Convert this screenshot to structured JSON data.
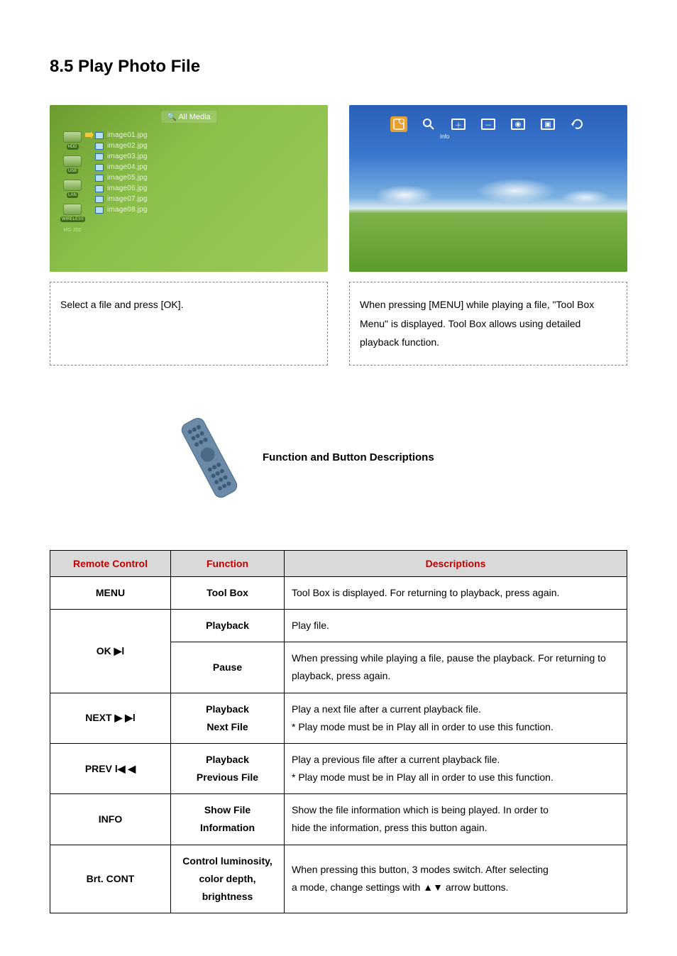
{
  "heading": "8.5 Play Photo File",
  "filebrowser": {
    "search_label": "All Media",
    "side_devices": [
      "HDD",
      "USB",
      "LAN",
      "WIRELESS"
    ],
    "files": [
      "image01.jpg",
      "image02.jpg",
      "image03.jpg",
      "image04.jpg",
      "image05.jpg",
      "image06.jpg",
      "image07.jpg",
      "image08.jpg"
    ],
    "logo_line": "MG 350"
  },
  "photoviewer": {
    "info_label": "Info"
  },
  "captions": {
    "left": "Select a file and press [OK].",
    "right": "When pressing [MENU] while playing a file, \"Tool Box Menu\" is displayed. Tool Box allows using detailed playback function."
  },
  "function_heading": "Function and Button Descriptions",
  "table": {
    "headers": [
      "Remote Control",
      "Function",
      "Descriptions"
    ],
    "rows": [
      {
        "rc": "MENU",
        "fn": "Tool Box",
        "desc": "Tool Box is displayed. For returning to playback, press again."
      },
      {
        "rc": "OK ▶l",
        "rowspan": 2,
        "fn": "Playback",
        "desc": "Play file."
      },
      {
        "fn": "Pause",
        "desc": "When pressing while playing a file, pause the playback. For returning to playback, press again.",
        "justify": true
      },
      {
        "rc": "NEXT ▶ ▶l",
        "fn": "Playback\nNext File",
        "desc": "Play a next file after a current playback file.\n* Play mode must be in Play all in order to use this function."
      },
      {
        "rc": "PREV l◀ ◀",
        "fn": "Playback\nPrevious File",
        "desc": "Play a previous file after a current playback file.\n* Play mode must be in Play all in order to use this function."
      },
      {
        "rc": "INFO",
        "fn": "Show File Information",
        "desc": "Show the file information which is being played. In order to\nhide the information, press this button again."
      },
      {
        "rc": "Brt. CONT",
        "fn": "Control luminosity,\ncolor depth, brightness",
        "desc": "When pressing this button, 3 modes switch. After selecting\na mode, change settings with  ▲▼  arrow buttons."
      }
    ]
  },
  "colors": {
    "header_bg": "#d9d9d9",
    "header_text": "#c00000",
    "border": "#000000"
  }
}
